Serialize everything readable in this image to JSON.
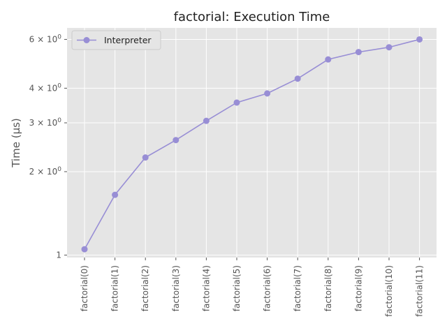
{
  "chart_data": {
    "type": "line",
    "title": "factorial: Execution Time",
    "xlabel": "",
    "ylabel": "Time (µs)",
    "yscale": "log",
    "ylim": [
      0.98,
      6.6
    ],
    "grid": true,
    "legend_position": "top-left",
    "categories": [
      "factorial(0)",
      "factorial(1)",
      "factorial(2)",
      "factorial(3)",
      "factorial(4)",
      "factorial(5)",
      "factorial(6)",
      "factorial(7)",
      "factorial(8)",
      "factorial(9)",
      "factorial(10)",
      "factorial(11)"
    ],
    "y_ticks": [
      {
        "value": 1,
        "base": "1",
        "exp": ""
      },
      {
        "value": 2,
        "base": "2 × 10",
        "exp": "0"
      },
      {
        "value": 3,
        "base": "3 × 10",
        "exp": "0"
      },
      {
        "value": 4,
        "base": "4 × 10",
        "exp": "0"
      },
      {
        "value": 6,
        "base": "6 × 10",
        "exp": "0"
      }
    ],
    "series": [
      {
        "name": "Interpreter",
        "color": "#988ed5",
        "values": [
          1.05,
          1.65,
          2.25,
          2.6,
          3.05,
          3.55,
          3.83,
          4.33,
          5.08,
          5.4,
          5.62,
          6.0
        ]
      }
    ]
  }
}
